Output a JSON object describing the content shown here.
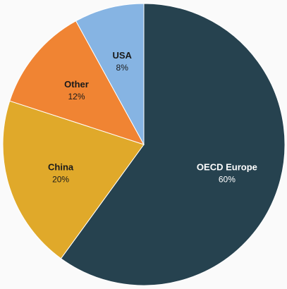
{
  "chart_data": {
    "type": "pie",
    "title": "",
    "start_angle_deg": 0,
    "direction": "clockwise",
    "legend": "none",
    "slices": [
      {
        "label": "OECD Europe",
        "value": 60,
        "value_label": "60%",
        "color": "#26424f",
        "text_color": "#ffffff"
      },
      {
        "label": "China",
        "value": 20,
        "value_label": "20%",
        "color": "#e0a92a",
        "text_color": "#1a1a1a"
      },
      {
        "label": "Other",
        "value": 12,
        "value_label": "12%",
        "color": "#f08433",
        "text_color": "#1a1a1a"
      },
      {
        "label": "USA",
        "value": 8,
        "value_label": "8%",
        "color": "#86b4e3",
        "text_color": "#1a1a1a"
      }
    ]
  }
}
